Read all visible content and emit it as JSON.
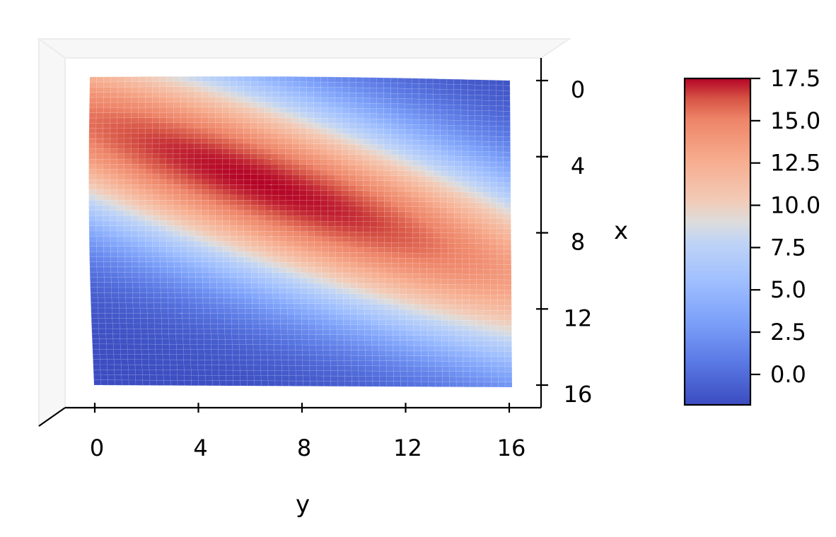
{
  "chart_data": {
    "type": "surface-3d",
    "view": "top-down",
    "title": "",
    "xlabel": "x",
    "ylabel": "y",
    "x_axis": {
      "label": "x",
      "ticks": [
        0,
        4,
        8,
        12,
        16
      ],
      "range": [
        0,
        16
      ]
    },
    "y_axis": {
      "label": "y",
      "ticks": [
        0,
        4,
        8,
        12,
        16
      ],
      "range": [
        0,
        16
      ]
    },
    "surface": {
      "grid_points": 60,
      "function": "gaussian peak over grid",
      "peak_value": 17.5,
      "peak_location": {
        "x": 5.5,
        "y": 6.5
      },
      "min_value": -1.8
    },
    "colorbar": {
      "colormap": "coolwarm",
      "ticks": [
        "0.0",
        "2.5",
        "5.0",
        "7.5",
        "10.0",
        "12.5",
        "15.0",
        "17.5"
      ],
      "range": [
        -1.8,
        17.5
      ]
    },
    "colors": {
      "low": "#3b4cc0",
      "mid": "#dddddd",
      "high": "#b40426"
    }
  }
}
